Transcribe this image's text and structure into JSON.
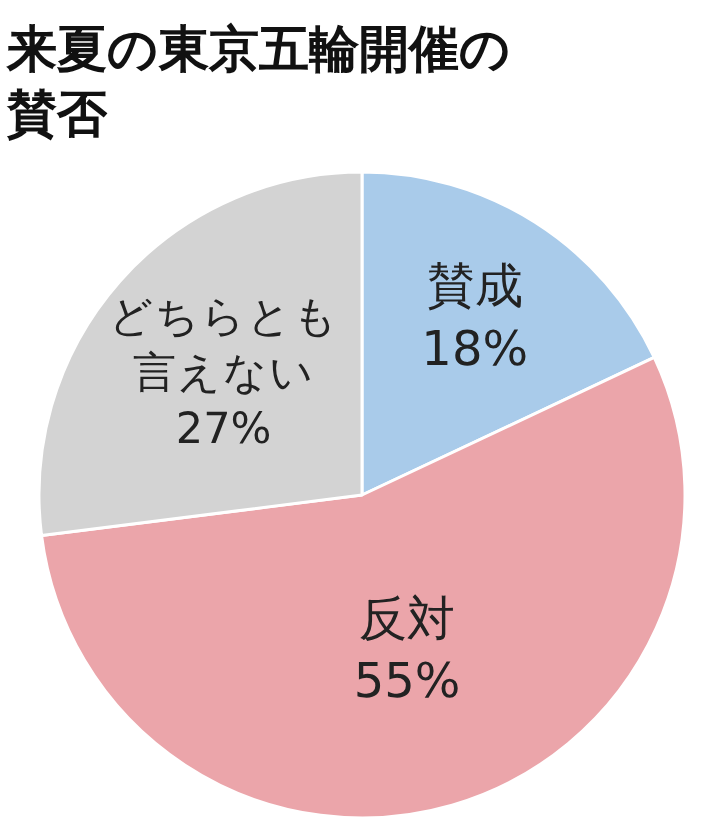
{
  "chart_data": {
    "type": "pie",
    "title": "来夏の東京五輪開催の賛否",
    "categories": [
      "賛成",
      "反対",
      "どちらとも言えない"
    ],
    "values": [
      18,
      55,
      27
    ],
    "value_labels": [
      "18%",
      "55%",
      "27%"
    ],
    "colors": [
      "#a9cbea",
      "#eba5aa",
      "#d3d3d3"
    ]
  }
}
